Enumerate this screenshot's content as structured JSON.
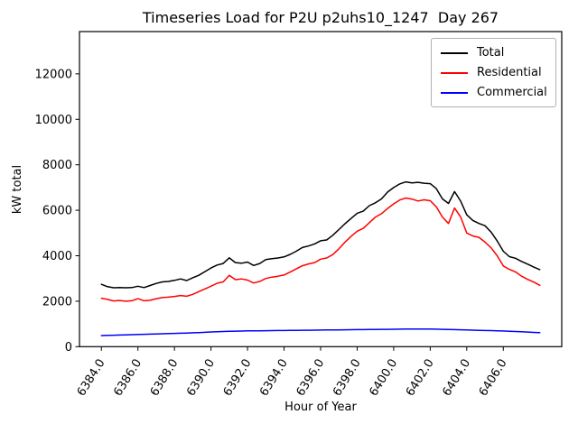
{
  "chart_data": {
    "type": "line",
    "title": "Timeseries Load for P2U p2uhs10_1247  Day 267",
    "xlabel": "Hour of Year",
    "ylabel": "kW total",
    "xlim": [
      6382.8,
      6409.2
    ],
    "ylim": [
      0,
      13860
    ],
    "grid": false,
    "legend_position": "upper right",
    "background": "#ffffff",
    "xticks": [
      6384,
      6386,
      6388,
      6390,
      6392,
      6394,
      6396,
      6398,
      6400,
      6402,
      6404,
      6406
    ],
    "xtick_labels": [
      "6384.0",
      "6386.0",
      "6388.0",
      "6390.0",
      "6392.0",
      "6394.0",
      "6396.0",
      "6398.0",
      "6400.0",
      "6402.0",
      "6404.0",
      "6406.0"
    ],
    "yticks": [
      0,
      2000,
      4000,
      6000,
      8000,
      10000,
      12000
    ],
    "ytick_labels": [
      "0",
      "2000",
      "4000",
      "6000",
      "8000",
      "10000",
      "12000"
    ],
    "x": [
      6384,
      6384.333,
      6384.667,
      6385,
      6385.333,
      6385.667,
      6386,
      6386.333,
      6386.667,
      6387,
      6387.333,
      6387.667,
      6388,
      6388.333,
      6388.667,
      6389,
      6389.333,
      6389.667,
      6390,
      6390.333,
      6390.667,
      6391,
      6391.333,
      6391.667,
      6392,
      6392.333,
      6392.667,
      6393,
      6393.333,
      6393.667,
      6394,
      6394.333,
      6394.667,
      6395,
      6395.333,
      6395.667,
      6396,
      6396.333,
      6396.667,
      6397,
      6397.333,
      6397.667,
      6398,
      6398.333,
      6398.667,
      6399,
      6399.333,
      6399.667,
      6400,
      6400.333,
      6400.667,
      6401,
      6401.333,
      6401.667,
      6402,
      6402.333,
      6402.667,
      6403,
      6403.333,
      6403.667,
      6404,
      6404.333,
      6404.667,
      6405,
      6405.333,
      6405.667,
      6406,
      6406.333,
      6406.667,
      6407,
      6407.333,
      6407.667,
      6408
    ],
    "series": [
      {
        "name": "Total",
        "color": "#000000",
        "values": [
          2740,
          2640,
          2590,
          2600,
          2590,
          2600,
          2660,
          2600,
          2690,
          2780,
          2850,
          2870,
          2915,
          2980,
          2910,
          3030,
          3140,
          3300,
          3460,
          3590,
          3660,
          3910,
          3700,
          3670,
          3720,
          3570,
          3660,
          3830,
          3870,
          3900,
          3950,
          4060,
          4200,
          4360,
          4430,
          4520,
          4660,
          4695,
          4900,
          5150,
          5410,
          5640,
          5870,
          5960,
          6200,
          6330,
          6500,
          6800,
          7000,
          7160,
          7250,
          7200,
          7230,
          7190,
          7170,
          6950,
          6500,
          6300,
          6820,
          6400,
          5800,
          5550,
          5420,
          5320,
          5040,
          4650,
          4200,
          3960,
          3890,
          3750,
          3630,
          3500,
          3390
        ]
      },
      {
        "name": "Residential",
        "color": "#ff0000",
        "values": [
          2130,
          2080,
          2010,
          2030,
          2000,
          2020,
          2110,
          2020,
          2040,
          2110,
          2160,
          2180,
          2210,
          2250,
          2220,
          2300,
          2420,
          2540,
          2660,
          2790,
          2850,
          3140,
          2950,
          2980,
          2930,
          2800,
          2870,
          3000,
          3060,
          3100,
          3150,
          3280,
          3420,
          3560,
          3640,
          3700,
          3850,
          3900,
          4050,
          4300,
          4600,
          4850,
          5080,
          5200,
          5450,
          5700,
          5850,
          6080,
          6280,
          6450,
          6540,
          6490,
          6410,
          6460,
          6420,
          6150,
          5700,
          5420,
          6100,
          5700,
          5000,
          4870,
          4810,
          4600,
          4350,
          4000,
          3550,
          3400,
          3290,
          3100,
          2960,
          2840,
          2700
        ]
      },
      {
        "name": "Commercial",
        "color": "#0000ff",
        "values": [
          490,
          497,
          505,
          512,
          520,
          528,
          535,
          542,
          550,
          558,
          566,
          575,
          583,
          592,
          600,
          610,
          620,
          632,
          645,
          655,
          665,
          675,
          682,
          688,
          693,
          697,
          700,
          703,
          706,
          709,
          712,
          715,
          718,
          721,
          724,
          727,
          730,
          733,
          736,
          739,
          742,
          745,
          748,
          751,
          754,
          757,
          760,
          763,
          766,
          770,
          773,
          775,
          776,
          775,
          772,
          768,
          762,
          755,
          748,
          742,
          735,
          728,
          720,
          712,
          705,
          698,
          690,
          680,
          668,
          655,
          642,
          628,
          615
        ]
      }
    ]
  }
}
